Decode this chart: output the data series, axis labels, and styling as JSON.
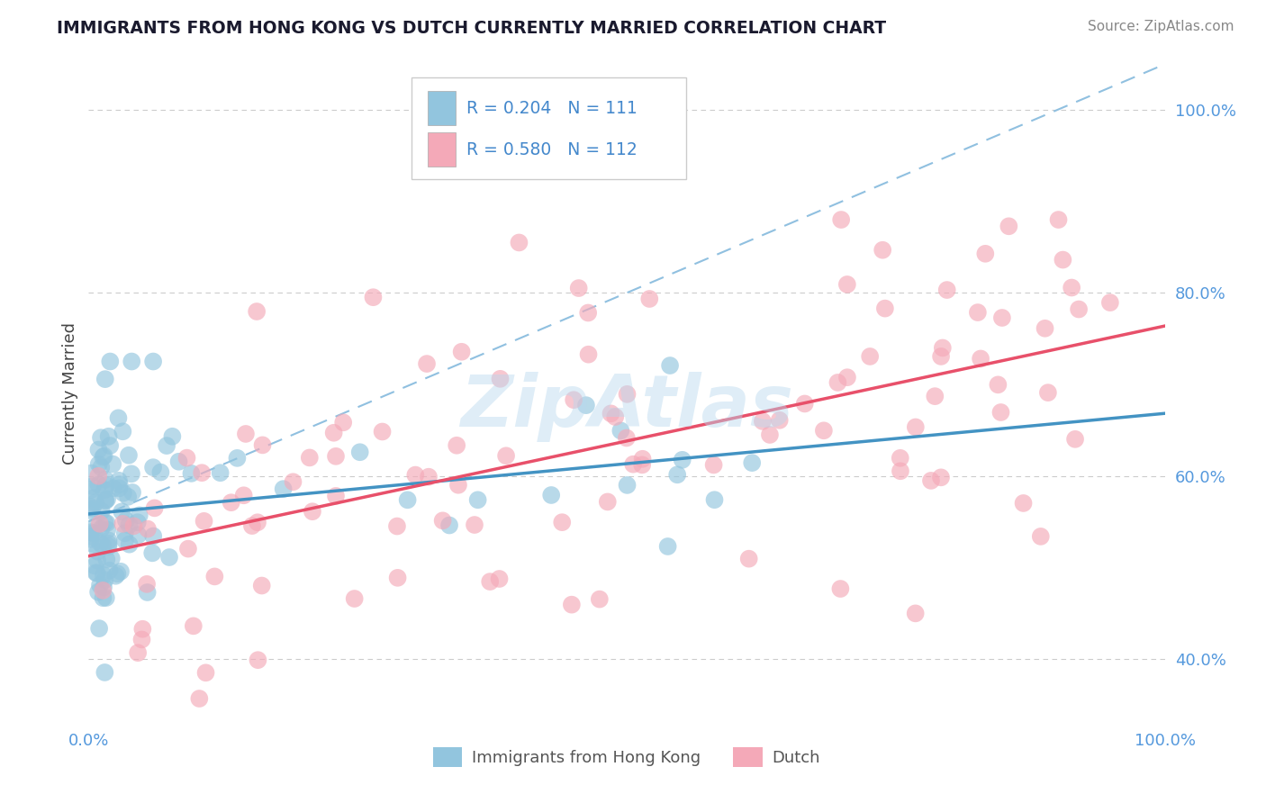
{
  "title": "IMMIGRANTS FROM HONG KONG VS DUTCH CURRENTLY MARRIED CORRELATION CHART",
  "source": "Source: ZipAtlas.com",
  "ylabel": "Currently Married",
  "watermark": "ZipAtlas",
  "color_hk": "#92c5de",
  "color_dutch": "#f4a9b8",
  "color_hk_line": "#4393c3",
  "color_dutch_line": "#e8506a",
  "color_dashed_line": "#90c0e0",
  "xlim": [
    0.0,
    1.0
  ],
  "ylim": [
    0.33,
    1.05
  ],
  "y_ticks_right": [
    0.4,
    0.6,
    0.8,
    1.0
  ],
  "y_tick_labels_right": [
    "40.0%",
    "60.0%",
    "80.0%",
    "100.0%"
  ],
  "background_color": "#ffffff",
  "grid_color": "#cccccc"
}
